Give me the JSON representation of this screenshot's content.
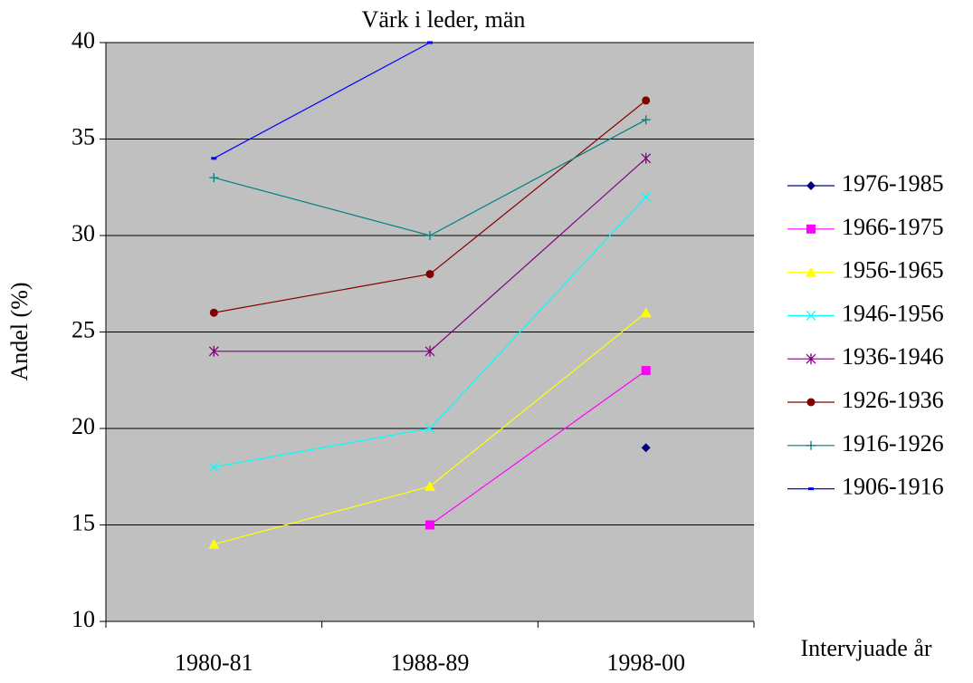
{
  "chart_data": {
    "type": "line",
    "title": "Värk i leder, män",
    "y_label": "Andel (%)",
    "x_label": "Intervjuade år",
    "categories": [
      "1980-81",
      "1988-89",
      "1998-00"
    ],
    "ylim": [
      10,
      40
    ],
    "yticks": [
      10,
      15,
      20,
      25,
      30,
      35,
      40
    ],
    "grid": true,
    "legend": "right",
    "series": [
      {
        "name": "1976-1985",
        "color": "#000080",
        "marker": "diamond",
        "values": [
          null,
          null,
          19
        ]
      },
      {
        "name": "1966-1975",
        "color": "#ff00ff",
        "marker": "square",
        "values": [
          null,
          15,
          23
        ]
      },
      {
        "name": "1956-1965",
        "color": "#ffff00",
        "marker": "triangle",
        "values": [
          14,
          17,
          26
        ]
      },
      {
        "name": "1946-1956",
        "color": "#00ffff",
        "marker": "x",
        "values": [
          18,
          20,
          32
        ]
      },
      {
        "name": "1936-1946",
        "color": "#800080",
        "marker": "star",
        "values": [
          24,
          24,
          34
        ]
      },
      {
        "name": "1926-1936",
        "color": "#800000",
        "marker": "circle",
        "values": [
          26,
          28,
          37
        ]
      },
      {
        "name": "1916-1926",
        "color": "#008080",
        "marker": "plus",
        "values": [
          33,
          30,
          36
        ]
      },
      {
        "name": "1906-1916",
        "color": "#0000ff",
        "marker": "dash",
        "values": [
          34,
          40,
          null
        ]
      }
    ]
  }
}
